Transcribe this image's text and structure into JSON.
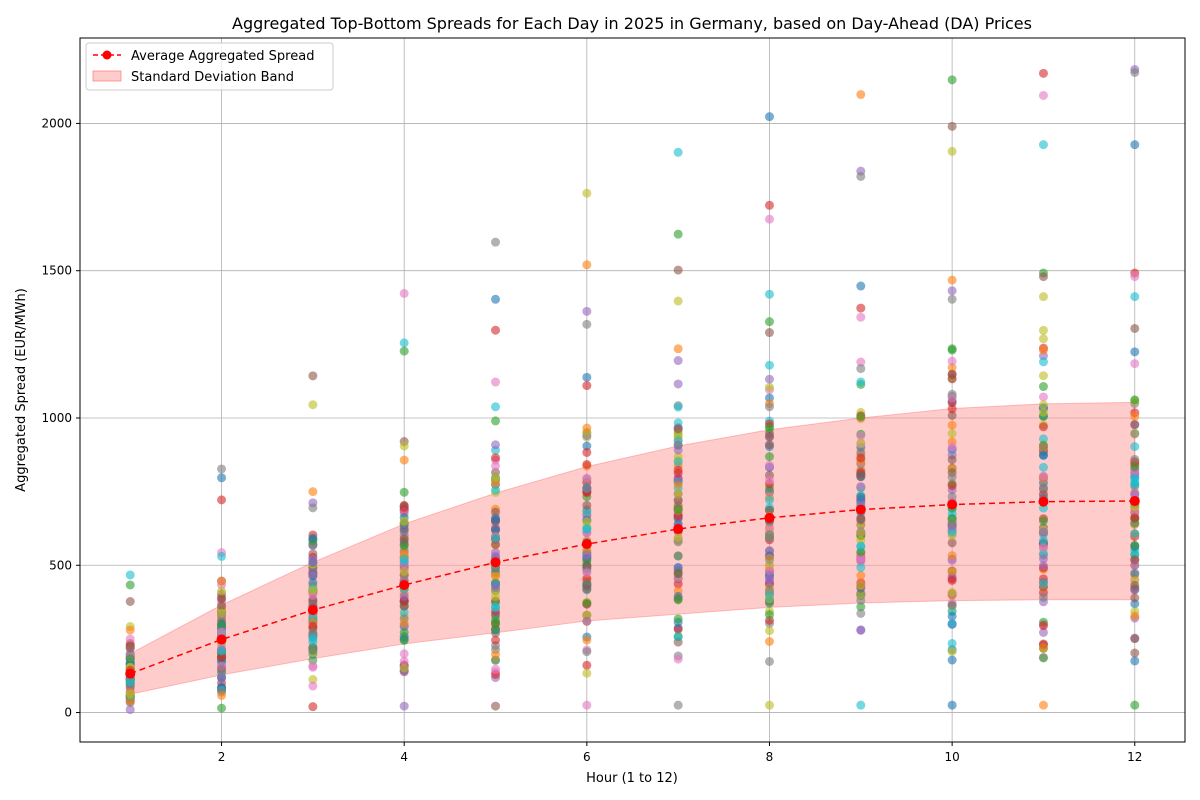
{
  "chart_data": {
    "type": "scatter",
    "title": "Aggregated Top-Bottom Spreads for Each Day in 2025 in Germany, based on Day-Ahead (DA) Prices",
    "xlabel": "Hour (1 to 12)",
    "ylabel": "Aggregated Spread (EUR/MWh)",
    "xlim": [
      0.45,
      12.55
    ],
    "ylim": [
      -100,
      2290
    ],
    "x_ticks": [
      2,
      4,
      6,
      8,
      10,
      12
    ],
    "y_ticks": [
      0,
      500,
      1000,
      1500,
      2000
    ],
    "grid": true,
    "legend_position": "top-left",
    "legend": {
      "average_label": "Average Aggregated Spread",
      "band_label": "Standard Deviation Band"
    },
    "average": {
      "name": "Average Aggregated Spread",
      "x": [
        1,
        2,
        3,
        4,
        5,
        6,
        7,
        8,
        9,
        10,
        11,
        12
      ],
      "y": [
        132,
        248,
        348,
        433,
        510,
        572,
        623,
        661,
        689,
        706,
        716,
        718
      ],
      "color": "#ff0000",
      "style": "dashed",
      "marker": "circle"
    },
    "std_band": {
      "name": "Standard Deviation Band",
      "x": [
        1,
        2,
        3,
        4,
        5,
        6,
        7,
        8,
        9,
        10,
        11,
        12
      ],
      "lower": [
        62,
        128,
        183,
        233,
        271,
        311,
        334,
        357,
        372,
        380,
        383,
        383
      ],
      "upper": [
        200,
        365,
        510,
        640,
        745,
        835,
        905,
        960,
        1000,
        1032,
        1048,
        1053
      ],
      "color": "#ff9999"
    },
    "scatter_colors": [
      "#1f77b4",
      "#ff7f0e",
      "#2ca02c",
      "#d62728",
      "#9467bd",
      "#8c564b",
      "#e377c2",
      "#7f7f7f",
      "#bcbd22",
      "#17becf"
    ],
    "scatter_alpha": 0.6,
    "scatter_note": "one point per day of 2025 per hour; outlier values listed explicitly",
    "scatter_outliers": [
      {
        "x": 1,
        "y": 467
      },
      {
        "x": 1,
        "y": 433
      },
      {
        "x": 1,
        "y": 377
      },
      {
        "x": 1,
        "y": 292
      },
      {
        "x": 1,
        "y": 280
      },
      {
        "x": 1,
        "y": 10
      },
      {
        "x": 2,
        "y": 827
      },
      {
        "x": 2,
        "y": 797
      },
      {
        "x": 2,
        "y": 722
      },
      {
        "x": 2,
        "y": 543
      },
      {
        "x": 2,
        "y": 530
      },
      {
        "x": 2,
        "y": 15
      },
      {
        "x": 3,
        "y": 1143
      },
      {
        "x": 3,
        "y": 1045
      },
      {
        "x": 3,
        "y": 750
      },
      {
        "x": 3,
        "y": 712
      },
      {
        "x": 3,
        "y": 695
      },
      {
        "x": 3,
        "y": 592
      },
      {
        "x": 3,
        "y": 20
      },
      {
        "x": 4,
        "y": 1423
      },
      {
        "x": 4,
        "y": 1255
      },
      {
        "x": 4,
        "y": 1227
      },
      {
        "x": 4,
        "y": 920
      },
      {
        "x": 4,
        "y": 905
      },
      {
        "x": 4,
        "y": 857
      },
      {
        "x": 4,
        "y": 22
      },
      {
        "x": 5,
        "y": 1597
      },
      {
        "x": 5,
        "y": 1403
      },
      {
        "x": 5,
        "y": 1298
      },
      {
        "x": 5,
        "y": 1122
      },
      {
        "x": 5,
        "y": 1038
      },
      {
        "x": 5,
        "y": 990
      },
      {
        "x": 5,
        "y": 22
      },
      {
        "x": 6,
        "y": 1763
      },
      {
        "x": 6,
        "y": 1520
      },
      {
        "x": 6,
        "y": 1362
      },
      {
        "x": 6,
        "y": 1318
      },
      {
        "x": 6,
        "y": 1138
      },
      {
        "x": 6,
        "y": 1110
      },
      {
        "x": 6,
        "y": 25
      },
      {
        "x": 7,
        "y": 1902
      },
      {
        "x": 7,
        "y": 1624
      },
      {
        "x": 7,
        "y": 1502
      },
      {
        "x": 7,
        "y": 1397
      },
      {
        "x": 7,
        "y": 1235
      },
      {
        "x": 7,
        "y": 1195
      },
      {
        "x": 7,
        "y": 25
      },
      {
        "x": 8,
        "y": 2023
      },
      {
        "x": 8,
        "y": 1722
      },
      {
        "x": 8,
        "y": 1675
      },
      {
        "x": 8,
        "y": 1420
      },
      {
        "x": 8,
        "y": 1327
      },
      {
        "x": 8,
        "y": 1290
      },
      {
        "x": 8,
        "y": 25
      },
      {
        "x": 9,
        "y": 2098
      },
      {
        "x": 9,
        "y": 1838
      },
      {
        "x": 9,
        "y": 1820
      },
      {
        "x": 9,
        "y": 1448
      },
      {
        "x": 9,
        "y": 1373
      },
      {
        "x": 9,
        "y": 1342
      },
      {
        "x": 9,
        "y": 25
      },
      {
        "x": 10,
        "y": 2148
      },
      {
        "x": 10,
        "y": 1990
      },
      {
        "x": 10,
        "y": 1905
      },
      {
        "x": 10,
        "y": 1468
      },
      {
        "x": 10,
        "y": 1432
      },
      {
        "x": 10,
        "y": 1403
      },
      {
        "x": 10,
        "y": 25
      },
      {
        "x": 11,
        "y": 2170
      },
      {
        "x": 11,
        "y": 2095
      },
      {
        "x": 11,
        "y": 1928
      },
      {
        "x": 11,
        "y": 1492
      },
      {
        "x": 11,
        "y": 1480
      },
      {
        "x": 11,
        "y": 1412
      },
      {
        "x": 11,
        "y": 25
      },
      {
        "x": 12,
        "y": 2183
      },
      {
        "x": 12,
        "y": 2173
      },
      {
        "x": 12,
        "y": 1928
      },
      {
        "x": 12,
        "y": 1492
      },
      {
        "x": 12,
        "y": 1480
      },
      {
        "x": 12,
        "y": 1412
      },
      {
        "x": 12,
        "y": 25
      }
    ],
    "points_per_hour": 80
  }
}
